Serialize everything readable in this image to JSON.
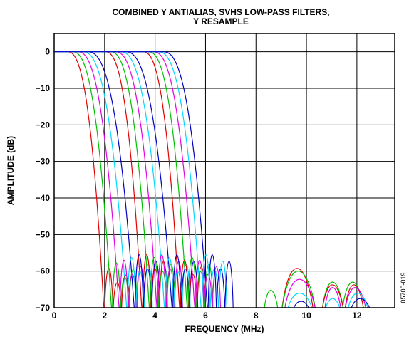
{
  "chart_data": {
    "type": "line",
    "title_line1": "COMBINED Y ANTIALIAS, SVHS LOW-PASS FILTERS,",
    "title_line2": "Y RESAMPLE",
    "xlabel": "FREQUENCY (MHz)",
    "ylabel": "AMPLITUDE (dB)",
    "xlim": [
      0,
      13.5
    ],
    "ylim": [
      -70,
      5
    ],
    "x_ticks": [
      "0",
      "2",
      "4",
      "6",
      "8",
      "10",
      "12"
    ],
    "y_ticks": [
      "0",
      "−10",
      "−20",
      "−30",
      "−40",
      "−50",
      "−60",
      "−70"
    ],
    "grid": true,
    "figure_id": "05700-019",
    "colors": [
      "#e00000",
      "#00c000",
      "#e000e0",
      "#00d8ff",
      "#0000c0"
    ],
    "series": [
      {
        "color": "#e00000",
        "passband_end": 0.5,
        "cutoff": 1.95,
        "stopband": 2.0
      },
      {
        "color": "#00c000",
        "passband_end": 0.7,
        "cutoff": 2.25,
        "stopband": 2.3
      },
      {
        "color": "#e000e0",
        "passband_end": 0.9,
        "cutoff": 2.55,
        "stopband": 2.6
      },
      {
        "color": "#00d8ff",
        "passband_end": 1.1,
        "cutoff": 2.85,
        "stopband": 2.9
      },
      {
        "color": "#0000c0",
        "passband_end": 1.3,
        "cutoff": 3.15,
        "stopband": 3.2
      },
      {
        "color": "#e00000",
        "passband_end": 2.0,
        "cutoff": 3.45,
        "stopband": 3.5
      },
      {
        "color": "#00c000",
        "passband_end": 2.2,
        "cutoff": 3.75,
        "stopband": 3.8
      },
      {
        "color": "#e000e0",
        "passband_end": 2.4,
        "cutoff": 4.05,
        "stopband": 4.1
      },
      {
        "color": "#00d8ff",
        "passband_end": 2.6,
        "cutoff": 4.35,
        "stopband": 4.4
      },
      {
        "color": "#0000c0",
        "passband_end": 2.8,
        "cutoff": 4.65,
        "stopband": 4.7
      },
      {
        "color": "#e00000",
        "passband_end": 3.5,
        "cutoff": 4.95,
        "stopband": 5.0
      },
      {
        "color": "#00c000",
        "passband_end": 3.7,
        "cutoff": 5.25,
        "stopband": 5.3
      },
      {
        "color": "#e000e0",
        "passband_end": 3.9,
        "cutoff": 5.55,
        "stopband": 5.6
      },
      {
        "color": "#00d8ff",
        "passband_end": 4.1,
        "cutoff": 5.8,
        "stopband": 5.85
      },
      {
        "color": "#0000c0",
        "passband_end": 4.3,
        "cutoff": 6.05,
        "stopband": 6.1
      }
    ],
    "stopband_lobes": [
      {
        "color": "#e00000",
        "x0": 2.0,
        "x1": 3.0,
        "peak": -55
      },
      {
        "color": "#00c000",
        "x0": 2.3,
        "x1": 3.3,
        "peak": -53
      },
      {
        "color": "#e000e0",
        "x0": 2.6,
        "x1": 3.6,
        "peak": -52
      },
      {
        "color": "#00d8ff",
        "x0": 2.9,
        "x1": 3.9,
        "peak": -51
      },
      {
        "color": "#0000c0",
        "x0": 3.2,
        "x1": 4.2,
        "peak": -50
      },
      {
        "color": "#e00000",
        "x0": 3.5,
        "x1": 4.5,
        "peak": -50
      },
      {
        "color": "#00c000",
        "x0": 3.8,
        "x1": 4.8,
        "peak": -51
      },
      {
        "color": "#e000e0",
        "x0": 4.1,
        "x1": 5.1,
        "peak": -50
      },
      {
        "color": "#00d8ff",
        "x0": 4.4,
        "x1": 5.4,
        "peak": -51
      },
      {
        "color": "#0000c0",
        "x0": 4.7,
        "x1": 5.7,
        "peak": -50
      },
      {
        "color": "#e00000",
        "x0": 5.0,
        "x1": 6.0,
        "peak": -52
      },
      {
        "color": "#00c000",
        "x0": 5.3,
        "x1": 6.3,
        "peak": -51
      },
      {
        "color": "#e000e0",
        "x0": 5.6,
        "x1": 6.6,
        "peak": -52
      },
      {
        "color": "#00d8ff",
        "x0": 5.85,
        "x1": 6.85,
        "peak": -50
      },
      {
        "color": "#0000c0",
        "x0": 6.1,
        "x1": 7.1,
        "peak": -50
      }
    ],
    "high_lobes": [
      {
        "color": "#00c000",
        "x0": 8.3,
        "x1": 8.9,
        "peak": -63
      },
      {
        "color": "#e00000",
        "x0": 9.0,
        "x1": 10.3,
        "peak": -55
      },
      {
        "color": "#00c000",
        "x0": 9.0,
        "x1": 10.4,
        "peak": -56
      },
      {
        "color": "#e000e0",
        "x0": 9.1,
        "x1": 10.4,
        "peak": -59
      },
      {
        "color": "#00d8ff",
        "x0": 9.2,
        "x1": 10.3,
        "peak": -64
      },
      {
        "color": "#0000c0",
        "x0": 9.4,
        "x1": 10.2,
        "peak": -67
      },
      {
        "color": "#00c000",
        "x0": 10.6,
        "x1": 11.5,
        "peak": -60
      },
      {
        "color": "#e00000",
        "x0": 10.6,
        "x1": 11.5,
        "peak": -61
      },
      {
        "color": "#e000e0",
        "x0": 10.7,
        "x1": 11.4,
        "peak": -62
      },
      {
        "color": "#00d8ff",
        "x0": 10.7,
        "x1": 11.4,
        "peak": -66
      },
      {
        "color": "#00c000",
        "x0": 11.4,
        "x1": 12.3,
        "peak": -60
      },
      {
        "color": "#e00000",
        "x0": 11.5,
        "x1": 12.3,
        "peak": -61
      },
      {
        "color": "#e000e0",
        "x0": 11.5,
        "x1": 12.4,
        "peak": -62
      },
      {
        "color": "#00d8ff",
        "x0": 11.6,
        "x1": 12.5,
        "peak": -64
      },
      {
        "color": "#0000c0",
        "x0": 11.7,
        "x1": 12.6,
        "peak": -66
      }
    ]
  }
}
